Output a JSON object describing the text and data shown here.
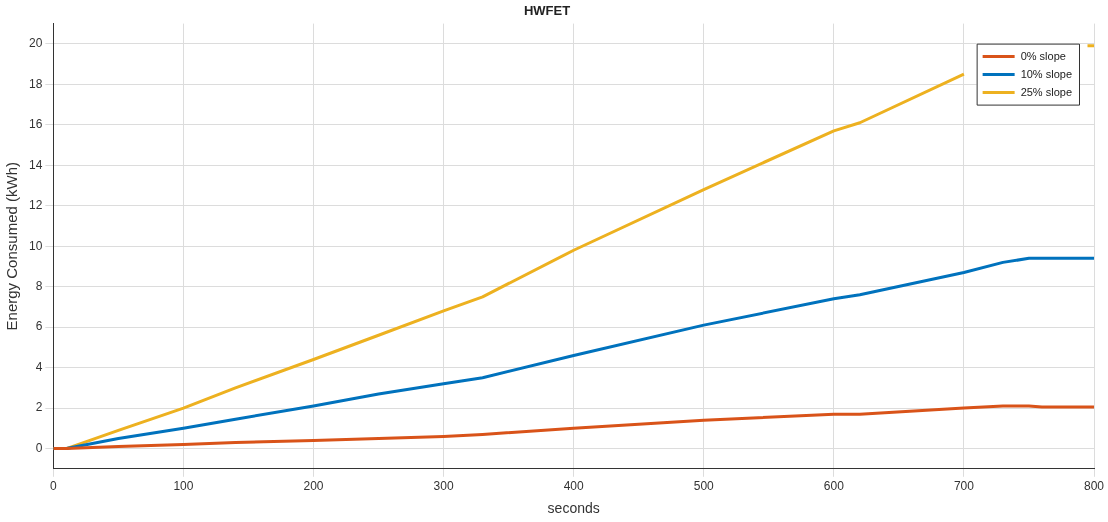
{
  "chart_data": {
    "type": "line",
    "title": "HWFET",
    "xlabel": "seconds",
    "ylabel": "Energy Consumed (kWh)",
    "x": [
      0,
      10,
      50,
      100,
      140,
      200,
      250,
      300,
      330,
      400,
      500,
      600,
      620,
      700,
      730,
      750,
      760,
      795,
      800
    ],
    "series": [
      {
        "name": "0% slope",
        "color": "#d95319",
        "values": [
          0,
          0,
          0.1,
          0.2,
          0.3,
          0.4,
          0.5,
          0.6,
          0.7,
          1.0,
          1.4,
          1.7,
          1.7,
          2.0,
          2.1,
          2.1,
          2.05,
          2.05,
          2.05
        ]
      },
      {
        "name": "10% slope",
        "color": "#0072bd",
        "values": [
          0,
          0,
          0.5,
          1.0,
          1.45,
          2.1,
          2.7,
          3.2,
          3.5,
          4.6,
          6.1,
          7.4,
          7.6,
          8.7,
          9.2,
          9.4,
          9.4,
          9.4,
          9.4
        ]
      },
      {
        "name": "25% slope",
        "color": "#edb120",
        "values": [
          0,
          0,
          0.9,
          2.0,
          3.0,
          4.4,
          5.6,
          6.8,
          7.5,
          9.8,
          12.8,
          15.7,
          16.1,
          18.5,
          null,
          null,
          null,
          19.9,
          19.9
        ]
      }
    ],
    "xlim": [
      0,
      800
    ],
    "xticks": [
      0,
      100,
      200,
      300,
      400,
      500,
      600,
      700,
      800
    ],
    "ylim": [
      -1,
      21
    ],
    "yticks": [
      0,
      2,
      4,
      6,
      8,
      10,
      12,
      14,
      16,
      18,
      20
    ],
    "grid": true,
    "legend": "top right",
    "marker": "none",
    "line_style": "solid"
  }
}
